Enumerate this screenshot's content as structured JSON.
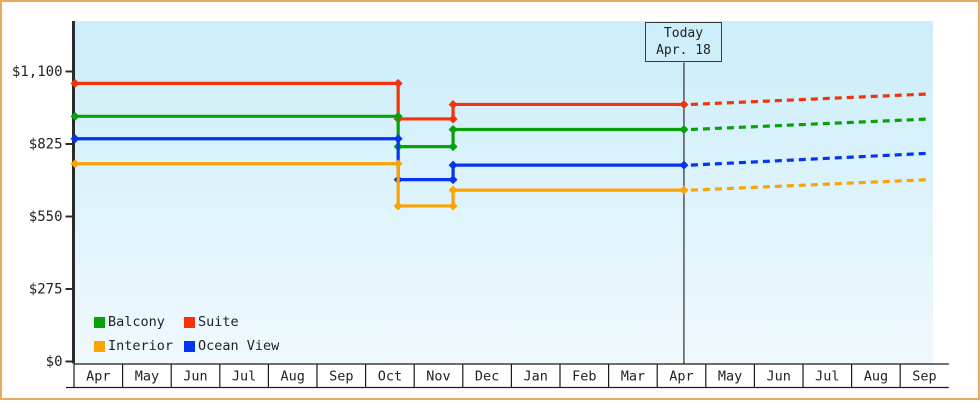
{
  "window": {
    "border_color": "#ECA85D",
    "background": "#FFFFFF"
  },
  "chart_data": {
    "type": "line",
    "subtype": "step-price-history-with-dashed-forecast",
    "title": "",
    "xlabel": "",
    "ylabel": "",
    "x_axis": {
      "months": [
        "Apr",
        "May",
        "Jun",
        "Jul",
        "Aug",
        "Sep",
        "Oct",
        "Nov",
        "Dec",
        "Jan",
        "Feb",
        "Mar",
        "Apr",
        "May",
        "Jun",
        "Jul",
        "Aug",
        "Sep"
      ]
    },
    "y_axis": {
      "ticks": [
        {
          "label": "$0",
          "value": 0
        },
        {
          "label": "$275",
          "value": 275
        },
        {
          "label": "$550",
          "value": 550
        },
        {
          "label": "$825",
          "value": 825
        },
        {
          "label": "$1,100",
          "value": 1100
        }
      ],
      "range": [
        0,
        1300
      ],
      "grid": false
    },
    "today": {
      "line1": "Today",
      "line2": "Apr. 18",
      "month_index": 12.55
    },
    "forecast_end_month_index": 17.61,
    "series": [
      {
        "name": "Suite",
        "color": "#F5330A",
        "steps": [
          {
            "month_index": 0,
            "price": 1055
          },
          {
            "month_index": 6.67,
            "price": 920
          },
          {
            "month_index": 7.8,
            "price": 975
          }
        ],
        "price_today": 975,
        "price_forecast_end": 1015
      },
      {
        "name": "Balcony",
        "color": "#0AA00A",
        "steps": [
          {
            "month_index": 0,
            "price": 930
          },
          {
            "month_index": 6.67,
            "price": 815
          },
          {
            "month_index": 7.8,
            "price": 880
          }
        ],
        "price_today": 880,
        "price_forecast_end": 920
      },
      {
        "name": "Ocean View",
        "color": "#0535F0",
        "steps": [
          {
            "month_index": 0,
            "price": 845
          },
          {
            "month_index": 6.67,
            "price": 690
          },
          {
            "month_index": 7.8,
            "price": 745
          }
        ],
        "price_today": 745,
        "price_forecast_end": 790
      },
      {
        "name": "Interior",
        "color": "#FCA203",
        "steps": [
          {
            "month_index": 0,
            "price": 750
          },
          {
            "month_index": 6.67,
            "price": 590
          },
          {
            "month_index": 7.8,
            "price": 650
          }
        ],
        "price_today": 650,
        "price_forecast_end": 690
      }
    ],
    "legend": [
      {
        "label": "Balcony",
        "color": "#0AA00A"
      },
      {
        "label": "Suite",
        "color": "#F5330A"
      },
      {
        "label": "Interior",
        "color": "#FCA203"
      },
      {
        "label": "Ocean View",
        "color": "#0535F0"
      }
    ],
    "legend_position": "bottom-left",
    "plot_background_gradient": [
      "#CBEDFA",
      "#EFF9FD"
    ],
    "axis_color": "#2B2B2B"
  }
}
